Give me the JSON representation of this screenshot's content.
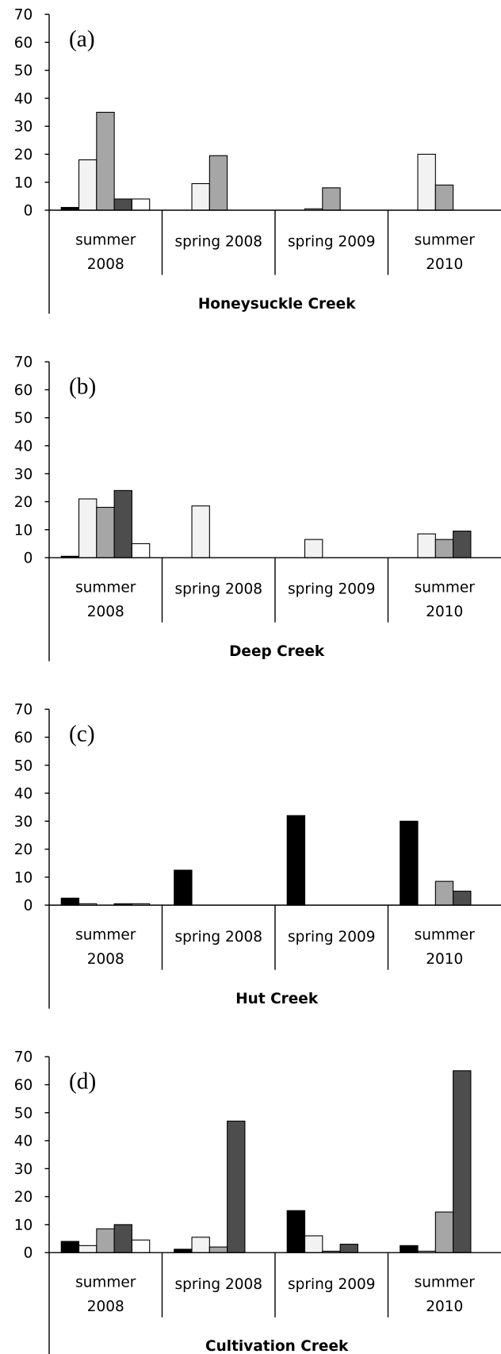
{
  "chart_data": [
    {
      "type": "bar",
      "panel_label": "(a)",
      "xlabel": "Honeysuckle Creek",
      "categories": [
        "summer\n2008",
        "spring 2008",
        "spring 2009",
        "summer\n2010"
      ],
      "ylim": [
        0,
        70
      ],
      "yticks": [
        0,
        10,
        20,
        30,
        40,
        50,
        60,
        70
      ],
      "series": [
        {
          "color": "#000000",
          "values": [
            1,
            0,
            0,
            0
          ]
        },
        {
          "color": "#f2f2f2",
          "values": [
            18,
            9.5,
            0.5,
            20
          ]
        },
        {
          "color": "#a6a6a6",
          "values": [
            35,
            19.5,
            8,
            9
          ]
        },
        {
          "color": "#4d4d4d",
          "values": [
            4,
            0,
            0,
            0
          ]
        },
        {
          "color": "#ffffff",
          "values": [
            4,
            0,
            0,
            0
          ]
        }
      ]
    },
    {
      "type": "bar",
      "panel_label": "(b)",
      "xlabel": "Deep Creek",
      "categories": [
        "summer\n2008",
        "spring 2008",
        "spring 2009",
        "summer\n2010"
      ],
      "ylim": [
        0,
        70
      ],
      "yticks": [
        0,
        10,
        20,
        30,
        40,
        50,
        60,
        70
      ],
      "series": [
        {
          "color": "#000000",
          "values": [
            0.5,
            0,
            0,
            0
          ]
        },
        {
          "color": "#f2f2f2",
          "values": [
            21,
            18.5,
            6.5,
            8.5
          ]
        },
        {
          "color": "#a6a6a6",
          "values": [
            18,
            0,
            0,
            6.5
          ]
        },
        {
          "color": "#4d4d4d",
          "values": [
            24,
            0,
            0,
            9.5
          ]
        },
        {
          "color": "#ffffff",
          "values": [
            5,
            0,
            0,
            0
          ]
        }
      ]
    },
    {
      "type": "bar",
      "panel_label": "(c)",
      "xlabel": "Hut Creek",
      "categories": [
        "summer\n2008",
        "spring 2008",
        "spring 2009",
        "summer\n2010"
      ],
      "ylim": [
        0,
        70
      ],
      "yticks": [
        0,
        10,
        20,
        30,
        40,
        50,
        60,
        70
      ],
      "series": [
        {
          "color": "#000000",
          "values": [
            2.5,
            12.5,
            32,
            30
          ]
        },
        {
          "color": "#f2f2f2",
          "values": [
            0.5,
            0,
            0,
            0
          ]
        },
        {
          "color": "#a6a6a6",
          "values": [
            0,
            0,
            0,
            8.5
          ]
        },
        {
          "color": "#4d4d4d",
          "values": [
            0.5,
            0,
            0,
            5
          ]
        },
        {
          "color": "#ffffff",
          "values": [
            0.5,
            0,
            0,
            0
          ]
        }
      ]
    },
    {
      "type": "bar",
      "panel_label": "(d)",
      "xlabel": "Cultivation Creek",
      "categories": [
        "summer\n2008",
        "spring 2008",
        "spring 2009",
        "summer\n2010"
      ],
      "ylim": [
        0,
        70
      ],
      "yticks": [
        0,
        10,
        20,
        30,
        40,
        50,
        60,
        70
      ],
      "series": [
        {
          "color": "#000000",
          "values": [
            4,
            1.2,
            15,
            2.5
          ]
        },
        {
          "color": "#f2f2f2",
          "values": [
            2.5,
            5.5,
            6,
            0.5
          ]
        },
        {
          "color": "#a6a6a6",
          "values": [
            8.5,
            2,
            0.5,
            14.5
          ]
        },
        {
          "color": "#4d4d4d",
          "values": [
            10,
            47,
            3,
            65
          ]
        },
        {
          "color": "#ffffff",
          "values": [
            4.5,
            0,
            0,
            0
          ]
        }
      ]
    }
  ]
}
